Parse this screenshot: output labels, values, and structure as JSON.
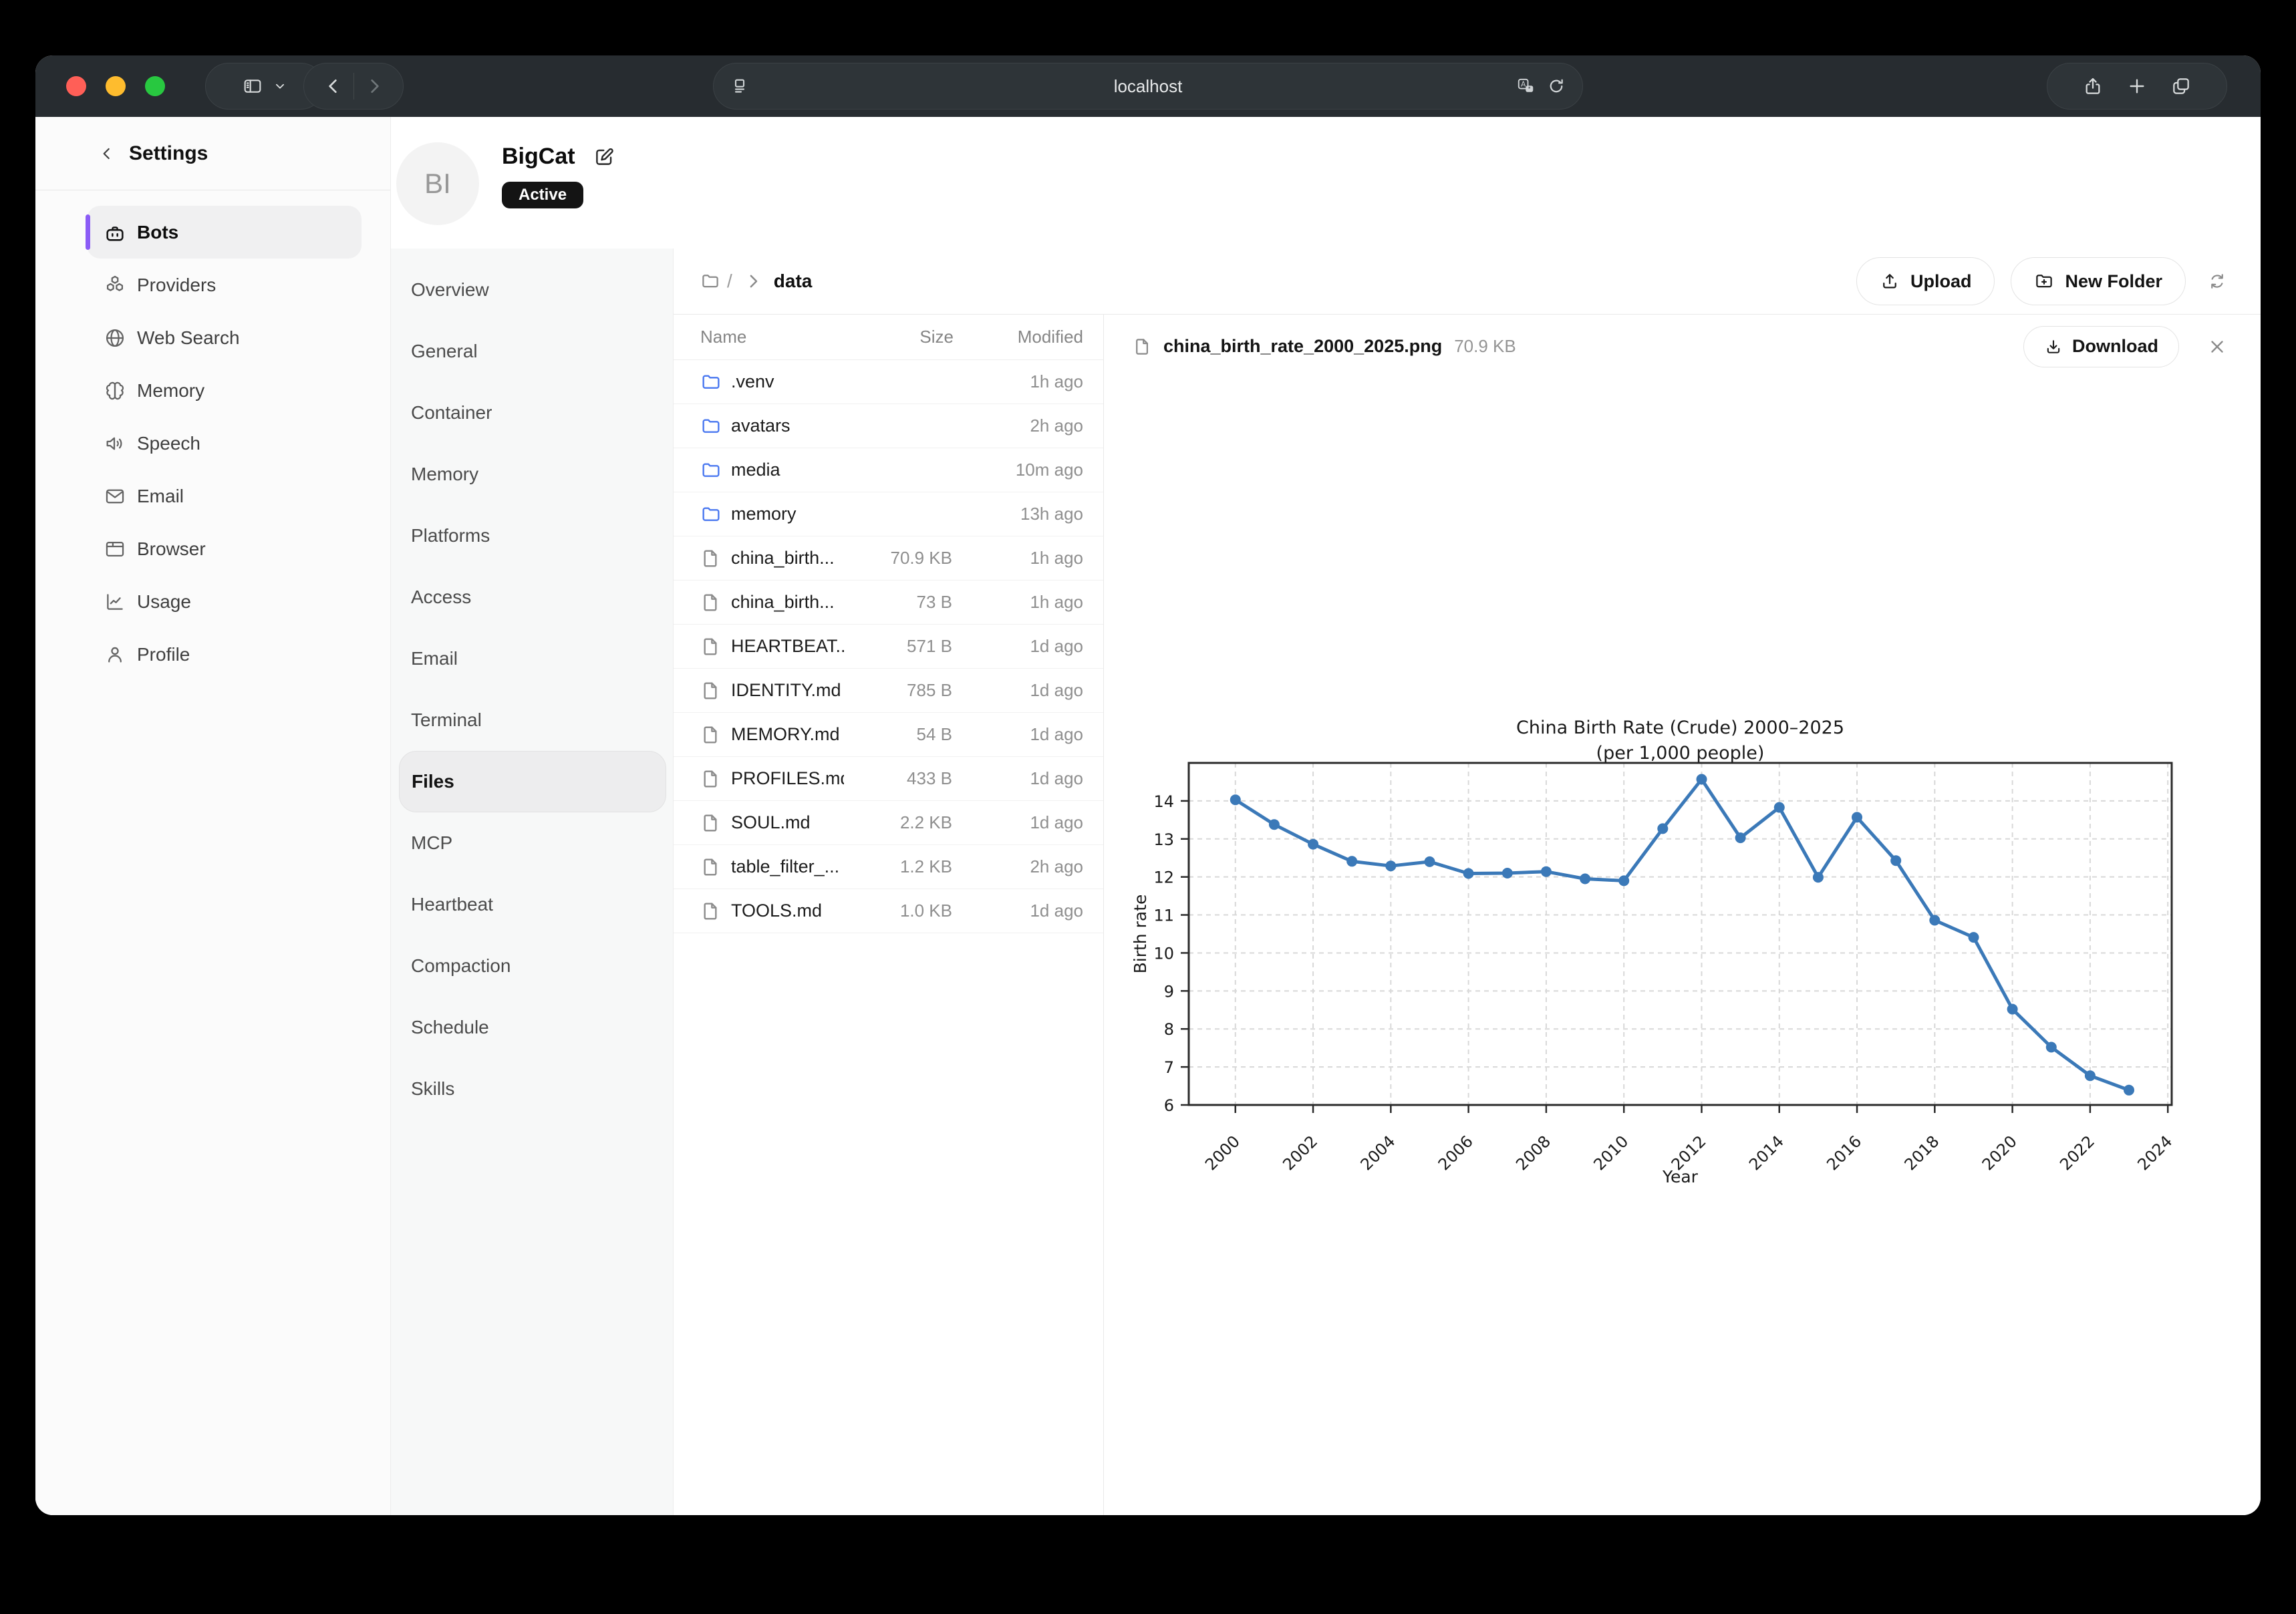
{
  "browser": {
    "url": "localhost",
    "window_buttons": [
      "close",
      "minimize",
      "zoom"
    ],
    "toolbar_icons": [
      "sidebar-toggle-icon",
      "chevron-down-icon",
      "back-icon",
      "forward-icon",
      "reader-icon",
      "translate-icon",
      "reload-icon",
      "share-icon",
      "new-tab-icon",
      "tab-overview-icon"
    ]
  },
  "sidebar": {
    "title": "Settings",
    "back_icon": "chevron-left-icon",
    "items": [
      {
        "label": "Bots",
        "icon": "bot-icon",
        "active": true
      },
      {
        "label": "Providers",
        "icon": "providers-icon",
        "active": false
      },
      {
        "label": "Web Search",
        "icon": "globe-icon",
        "active": false
      },
      {
        "label": "Memory",
        "icon": "brain-icon",
        "active": false
      },
      {
        "label": "Speech",
        "icon": "speaker-icon",
        "active": false
      },
      {
        "label": "Email",
        "icon": "mail-icon",
        "active": false
      },
      {
        "label": "Browser",
        "icon": "browser-window-icon",
        "active": false
      },
      {
        "label": "Usage",
        "icon": "usage-chart-icon",
        "active": false
      },
      {
        "label": "Profile",
        "icon": "user-icon",
        "active": false
      }
    ]
  },
  "bot": {
    "name": "BigCat",
    "avatar_initials": "BI",
    "status_badge": "Active"
  },
  "bot_nav": {
    "active": "Files",
    "items": [
      "Overview",
      "General",
      "Container",
      "Memory",
      "Platforms",
      "Access",
      "Email",
      "Terminal",
      "Files",
      "MCP",
      "Heartbeat",
      "Compaction",
      "Schedule",
      "Skills"
    ]
  },
  "file_browser": {
    "breadcrumb": {
      "root_icon": "folder-icon",
      "root": "/",
      "separator_icon": "chevron-right-icon",
      "current": "data"
    },
    "toolbar": {
      "upload_label": "Upload",
      "new_folder_label": "New Folder",
      "refresh_icon": "refresh-icon"
    },
    "table": {
      "columns": [
        "Name",
        "Size",
        "Modified"
      ],
      "rows": [
        {
          "name": ".venv",
          "type": "folder",
          "size": "",
          "modified": "1h ago"
        },
        {
          "name": "avatars",
          "type": "folder",
          "size": "",
          "modified": "2h ago"
        },
        {
          "name": "media",
          "type": "folder",
          "size": "",
          "modified": "10m ago"
        },
        {
          "name": "memory",
          "type": "folder",
          "size": "",
          "modified": "13h ago"
        },
        {
          "name": "china_birth...",
          "type": "file",
          "size": "70.9 KB",
          "modified": "1h ago"
        },
        {
          "name": "china_birth...",
          "type": "file",
          "size": "73 B",
          "modified": "1h ago"
        },
        {
          "name": "HEARTBEAT...",
          "type": "file",
          "size": "571 B",
          "modified": "1d ago"
        },
        {
          "name": "IDENTITY.md",
          "type": "file",
          "size": "785 B",
          "modified": "1d ago"
        },
        {
          "name": "MEMORY.md",
          "type": "file",
          "size": "54 B",
          "modified": "1d ago"
        },
        {
          "name": "PROFILES.md",
          "type": "file",
          "size": "433 B",
          "modified": "1d ago"
        },
        {
          "name": "SOUL.md",
          "type": "file",
          "size": "2.2 KB",
          "modified": "1d ago"
        },
        {
          "name": "table_filter_...",
          "type": "file",
          "size": "1.2 KB",
          "modified": "2h ago"
        },
        {
          "name": "TOOLS.md",
          "type": "file",
          "size": "1.0 KB",
          "modified": "1d ago"
        }
      ]
    }
  },
  "preview": {
    "file_icon": "file-icon",
    "file_name": "china_birth_rate_2000_2025.png",
    "file_size": "70.9 KB",
    "download_label": "Download",
    "close_icon": "close-icon"
  },
  "colors": {
    "accent_purple": "#8b5cf6",
    "folder_blue": "#4a78f0",
    "chart_line": "#3b79b8",
    "badge_bg": "#141414",
    "titlebar_bg": "#272c30",
    "traffic_red": "#ff5f57",
    "traffic_yellow": "#febc2e",
    "traffic_green": "#28c840"
  },
  "chart_data": {
    "type": "line",
    "title": "China Birth Rate (Crude) 2000–2025",
    "subtitle": "(per 1,000 people)",
    "xlabel": "Year",
    "ylabel": "Birth rate",
    "x": [
      2000,
      2001,
      2002,
      2003,
      2004,
      2005,
      2006,
      2007,
      2008,
      2009,
      2010,
      2011,
      2012,
      2013,
      2014,
      2015,
      2016,
      2017,
      2018,
      2019,
      2020,
      2021,
      2022,
      2023
    ],
    "values": [
      14.03,
      13.38,
      12.86,
      12.41,
      12.29,
      12.4,
      12.09,
      12.1,
      12.14,
      11.95,
      11.9,
      13.27,
      14.57,
      13.03,
      13.83,
      11.99,
      13.57,
      12.43,
      10.86,
      10.41,
      8.52,
      7.52,
      6.77,
      6.39
    ],
    "xlim": [
      1998.8,
      2024.1
    ],
    "ylim": [
      6,
      15
    ],
    "xticks": [
      2000,
      2002,
      2004,
      2006,
      2008,
      2010,
      2012,
      2014,
      2016,
      2018,
      2020,
      2022,
      2024
    ],
    "yticks": [
      6,
      7,
      8,
      9,
      10,
      11,
      12,
      13,
      14
    ],
    "grid": true,
    "legend_position": "none",
    "marker": "o"
  }
}
